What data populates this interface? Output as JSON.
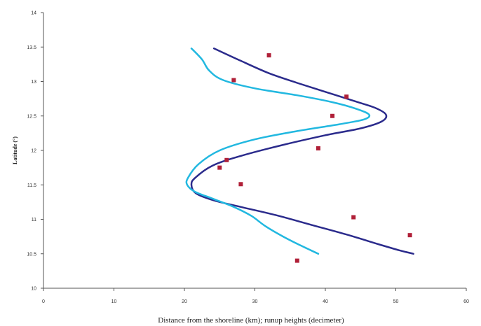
{
  "chart_data": {
    "type": "scatter",
    "title": "",
    "xlabel": "Distance from the shoreline (km); runup heights (decimeter)",
    "ylabel": "Latitude (°)",
    "xlim": [
      0,
      60
    ],
    "ylim": [
      10,
      14
    ],
    "x_ticks": [
      "0",
      "10",
      "20",
      "30",
      "40",
      "50",
      "60"
    ],
    "y_ticks": [
      "10",
      "10.5",
      "11",
      "11.5",
      "12",
      "12.5",
      "13",
      "13.5",
      "14"
    ],
    "grid": false,
    "legend": "none",
    "colors": {
      "series_dark": "#2b2b8c",
      "series_light": "#22b8e0",
      "points": "#b02038",
      "axis": "#555555"
    },
    "series": [
      {
        "type": "line",
        "color": "#2b2b8c",
        "points": [
          [
            24.2,
            13.48
          ],
          [
            28,
            13.3
          ],
          [
            32,
            13.12
          ],
          [
            36,
            12.98
          ],
          [
            40,
            12.85
          ],
          [
            44,
            12.72
          ],
          [
            47,
            12.62
          ],
          [
            48.6,
            12.52
          ],
          [
            48,
            12.42
          ],
          [
            45,
            12.32
          ],
          [
            40,
            12.22
          ],
          [
            34,
            12.08
          ],
          [
            28,
            11.92
          ],
          [
            24,
            11.78
          ],
          [
            21.5,
            11.6
          ],
          [
            21,
            11.5
          ],
          [
            21.6,
            11.38
          ],
          [
            24,
            11.28
          ],
          [
            28,
            11.18
          ],
          [
            33,
            11.06
          ],
          [
            38,
            10.92
          ],
          [
            43,
            10.78
          ],
          [
            47.5,
            10.64
          ],
          [
            50.5,
            10.55
          ],
          [
            52.5,
            10.5
          ]
        ]
      },
      {
        "type": "line",
        "color": "#22b8e0",
        "points": [
          [
            21,
            13.48
          ],
          [
            22.5,
            13.32
          ],
          [
            23.5,
            13.16
          ],
          [
            25.5,
            13.02
          ],
          [
            30,
            12.9
          ],
          [
            36,
            12.8
          ],
          [
            41,
            12.7
          ],
          [
            44.5,
            12.6
          ],
          [
            46.2,
            12.52
          ],
          [
            45.5,
            12.45
          ],
          [
            42,
            12.38
          ],
          [
            36,
            12.28
          ],
          [
            30,
            12.16
          ],
          [
            25,
            12.0
          ],
          [
            22,
            11.8
          ],
          [
            20.5,
            11.6
          ],
          [
            20.4,
            11.5
          ],
          [
            21.5,
            11.4
          ],
          [
            24,
            11.3
          ],
          [
            27,
            11.18
          ],
          [
            29.5,
            11.05
          ],
          [
            31.5,
            10.9
          ],
          [
            34,
            10.75
          ],
          [
            36.5,
            10.62
          ],
          [
            39,
            10.5
          ]
        ]
      },
      {
        "type": "scatter",
        "color": "#b02038",
        "points": [
          [
            32,
            13.38
          ],
          [
            27,
            13.02
          ],
          [
            43,
            12.78
          ],
          [
            41,
            12.5
          ],
          [
            39,
            12.03
          ],
          [
            26,
            11.86
          ],
          [
            25,
            11.75
          ],
          [
            28,
            11.51
          ],
          [
            44,
            11.03
          ],
          [
            52,
            10.77
          ],
          [
            36,
            10.4
          ]
        ]
      }
    ]
  }
}
